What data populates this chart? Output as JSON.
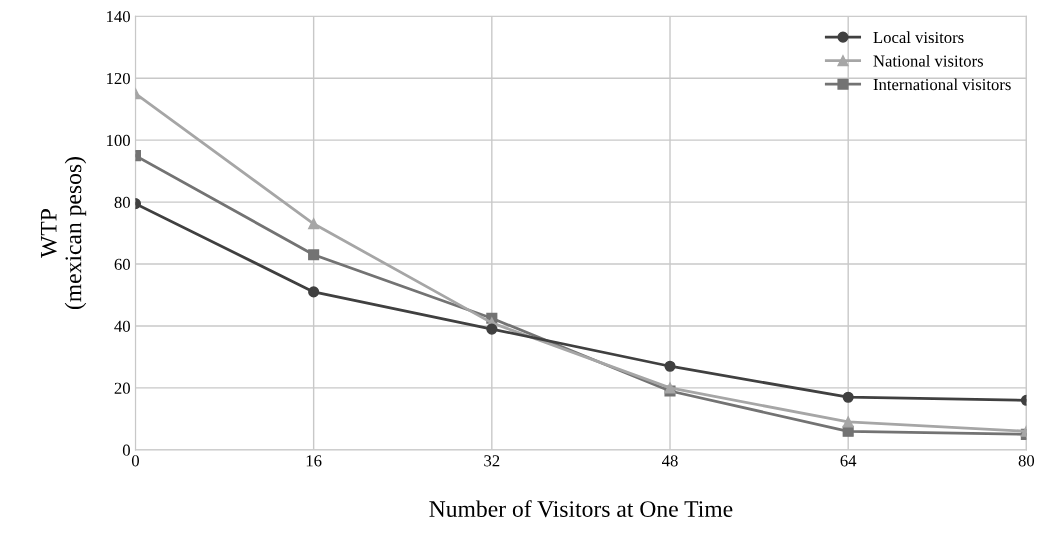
{
  "chart_data": {
    "type": "line",
    "xlabel": "Number of Visitors at One Time",
    "ylabel": "WTP\n(mexican pesos)",
    "x": [
      0,
      16,
      32,
      48,
      64,
      80
    ],
    "series": [
      {
        "name": "Local visitors",
        "color": "#404040",
        "marker": "circle",
        "values": [
          79.5,
          51,
          39,
          27,
          17,
          16
        ]
      },
      {
        "name": "National visitors",
        "color": "#a6a6a6",
        "marker": "triangle",
        "values": [
          115,
          73,
          41,
          20,
          9,
          6
        ]
      },
      {
        "name": "International visitors",
        "color": "#737373",
        "marker": "square",
        "values": [
          95,
          63,
          42.5,
          19,
          6,
          5
        ]
      }
    ],
    "xlim": [
      0,
      80
    ],
    "xticks": [
      0,
      16,
      32,
      48,
      64,
      80
    ],
    "ylim": [
      0,
      140
    ],
    "yticks": [
      0,
      20,
      40,
      60,
      80,
      100,
      120,
      140
    ],
    "grid": true,
    "legend": "top right",
    "line_style": "solid"
  }
}
